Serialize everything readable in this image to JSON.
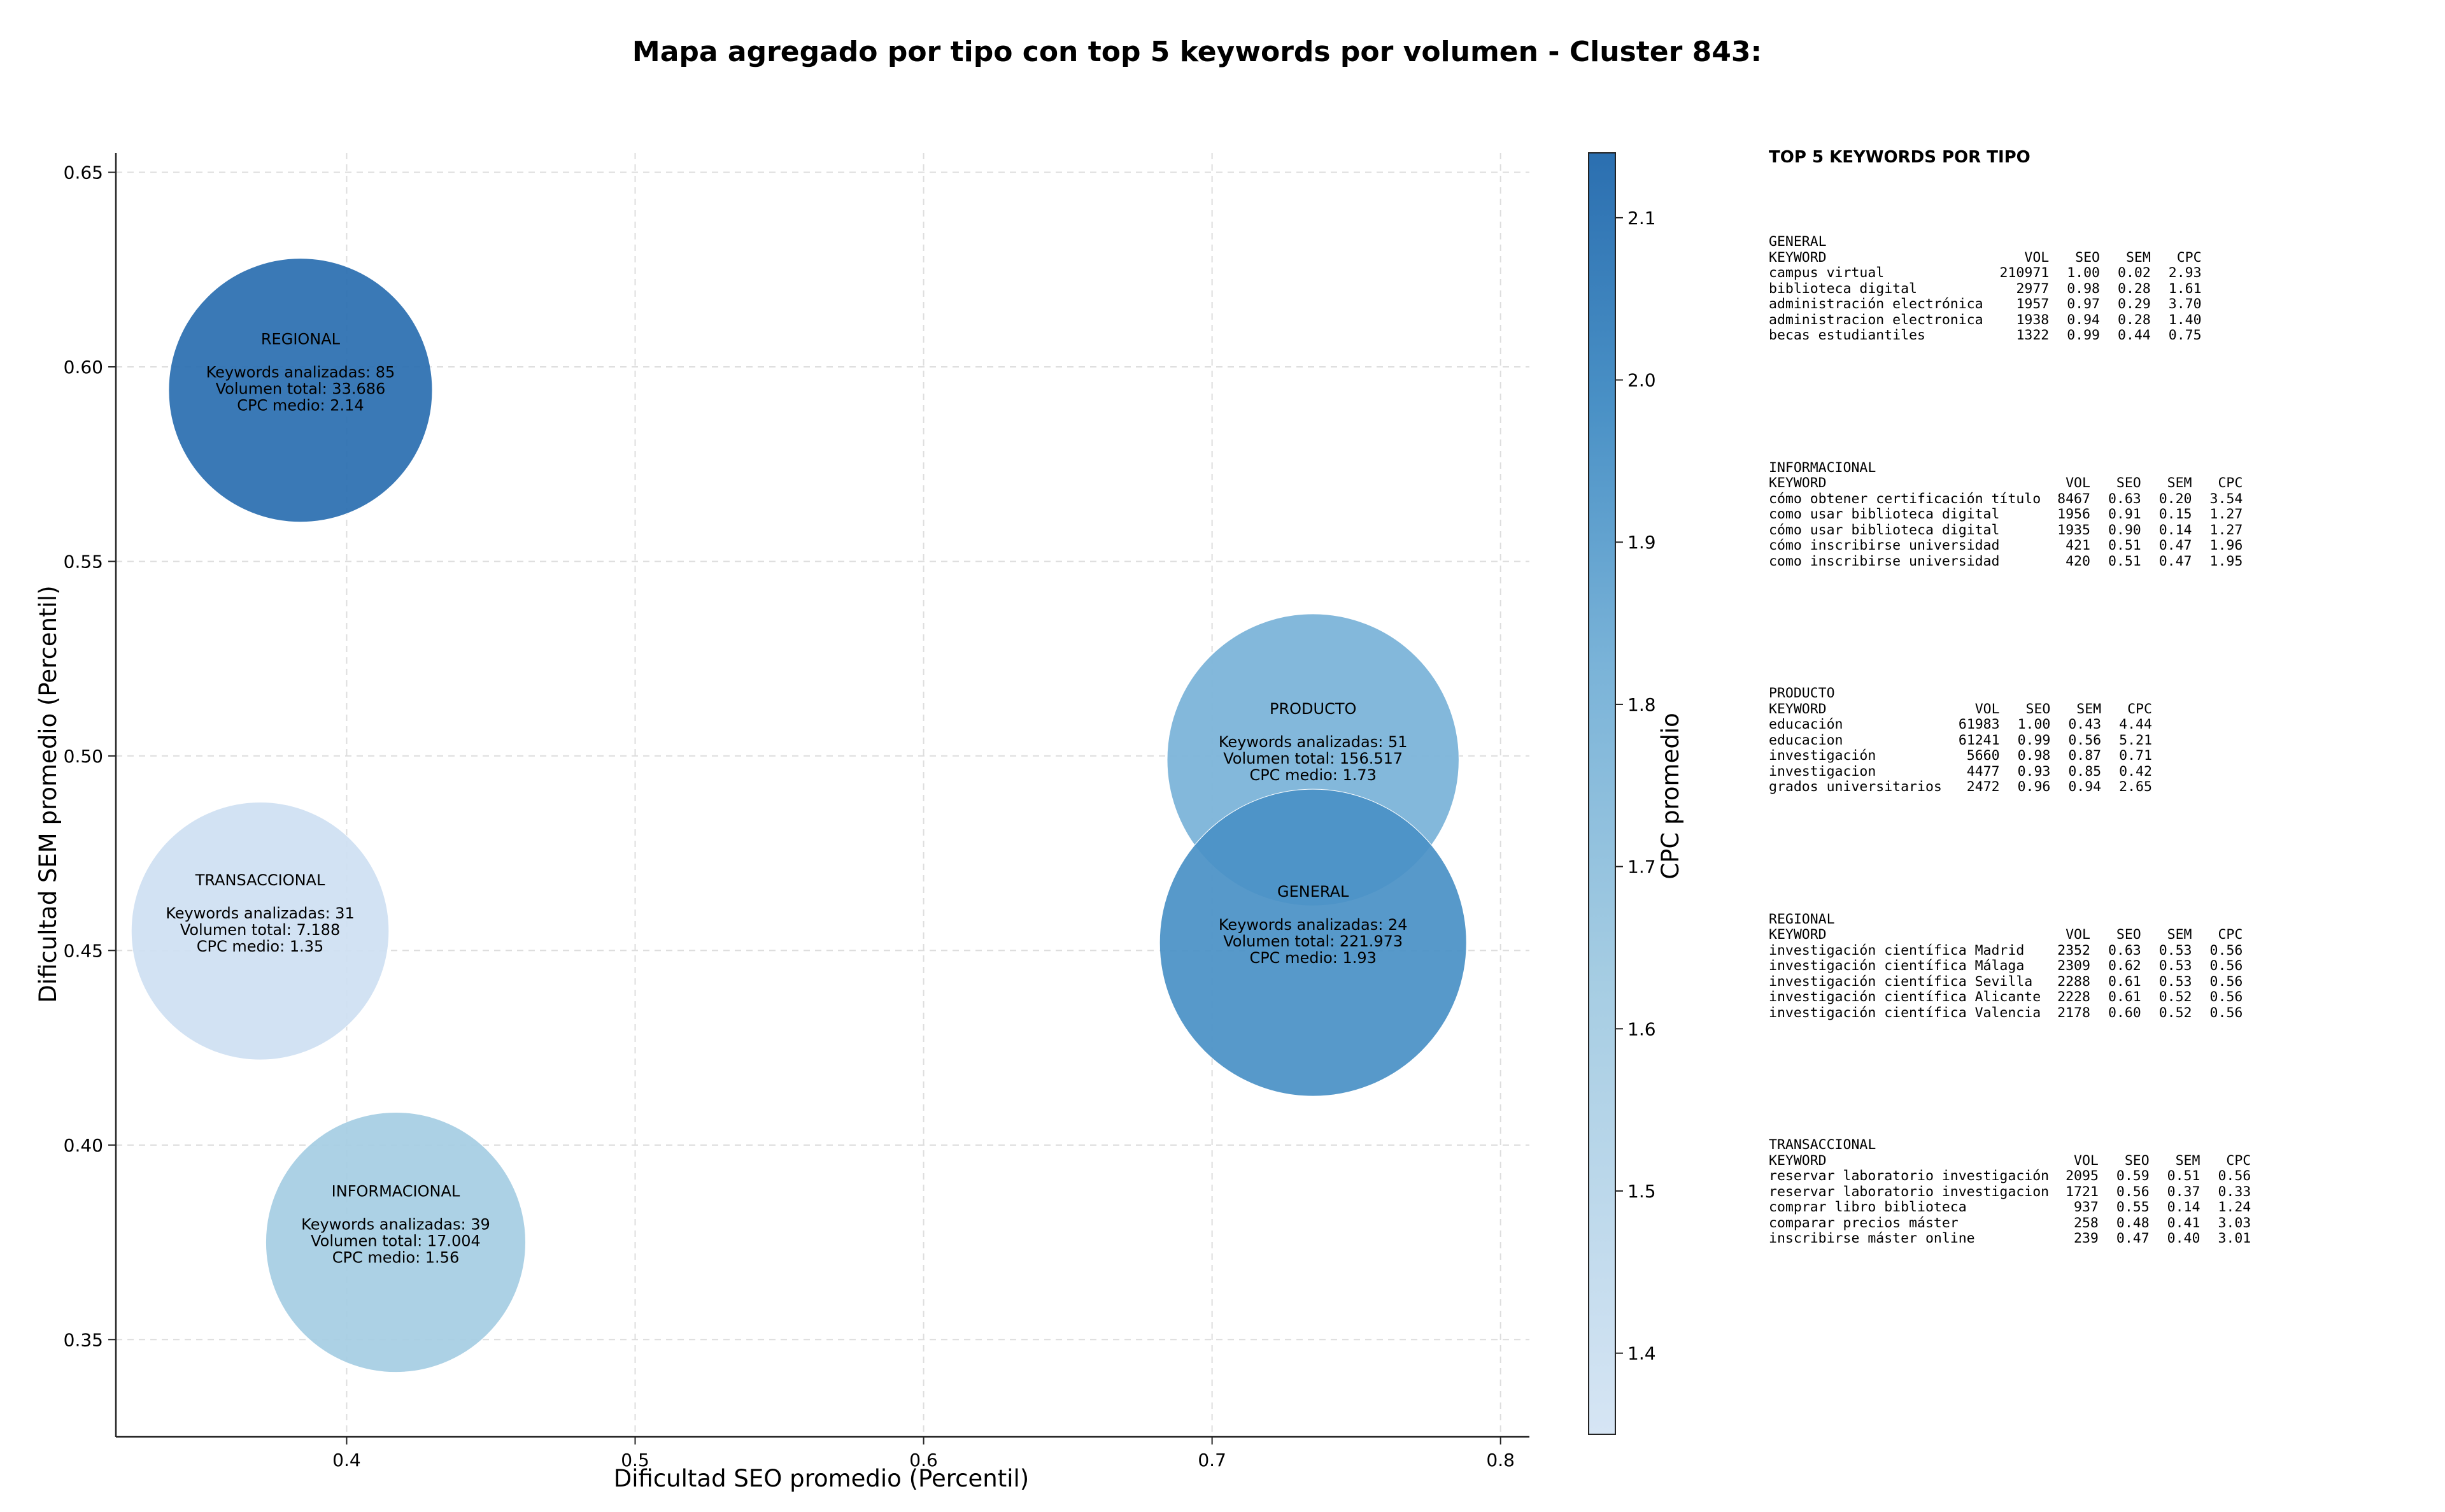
{
  "chart_data": {
    "type": "scatter",
    "title": "Mapa agregado por tipo con top 5 keywords por volumen - Cluster 843:",
    "xlabel": "Dificultad SEO promedio (Percentil)",
    "ylabel": "Dificultad SEM promedio (Percentil)",
    "colorbar_label": "CPC promedio",
    "xlim": [
      0.32,
      0.81
    ],
    "ylim": [
      0.325,
      0.655
    ],
    "x_ticks": [
      "0.4",
      "0.5",
      "0.6",
      "0.7",
      "0.8"
    ],
    "y_ticks": [
      "0.35",
      "0.40",
      "0.45",
      "0.50",
      "0.55",
      "0.60",
      "0.65"
    ],
    "colorbar_range": [
      1.35,
      2.14
    ],
    "colorbar_ticks": [
      "1.4",
      "1.5",
      "1.6",
      "1.7",
      "1.8",
      "1.9",
      "2.0",
      "2.1"
    ],
    "grid": true,
    "bubble_size_encodes": "Volumen total",
    "bubble_color_encodes": "CPC medio",
    "points": [
      {
        "label": "REGIONAL",
        "x": 0.384,
        "y": 0.594,
        "keywords_line": "Keywords analizadas: 85",
        "volume_line": "Volumen total: 33.686",
        "cpc_line": "CPC medio: 2.14",
        "cpc": 2.14,
        "color": "#2b6fb0"
      },
      {
        "label": "TRANSACCIONAL",
        "x": 0.37,
        "y": 0.455,
        "keywords_line": "Keywords analizadas: 31",
        "volume_line": "Volumen total: 7.188",
        "cpc_line": "CPC medio: 1.35",
        "cpc": 1.35,
        "color": "#cfe0f2"
      },
      {
        "label": "INFORMACIONAL",
        "x": 0.417,
        "y": 0.375,
        "keywords_line": "Keywords analizadas: 39",
        "volume_line": "Volumen total: 17.004",
        "cpc_line": "CPC medio: 1.56",
        "cpc": 1.56,
        "color": "#a6cde3"
      },
      {
        "label": "PRODUCTO",
        "x": 0.735,
        "y": 0.499,
        "keywords_line": "Keywords analizadas: 51",
        "volume_line": "Volumen total: 156.517",
        "cpc_line": "CPC medio: 1.73",
        "cpc": 1.73,
        "color": "#7ab3d8"
      },
      {
        "label": "GENERAL",
        "x": 0.735,
        "y": 0.452,
        "keywords_line": "Keywords analizadas: 24",
        "volume_line": "Volumen total: 221.973",
        "cpc_line": "CPC medio: 1.93",
        "cpc": 1.93,
        "color": "#4a91c6"
      }
    ],
    "colors": {
      "colormap_low": "#d6e5f4",
      "colormap_high": "#2b6fb0",
      "grid": "#d9d9d9"
    }
  },
  "panel": {
    "heading": "TOP 5 KEYWORDS POR TIPO",
    "groups": [
      {
        "name": "GENERAL",
        "columns": [
          "KEYWORD",
          "VOL",
          "SEO",
          "SEM",
          "CPC"
        ],
        "rows": [
          [
            "campus virtual",
            "210971",
            "1.00",
            "0.02",
            "2.93"
          ],
          [
            "biblioteca digital",
            "2977",
            "0.98",
            "0.28",
            "1.61"
          ],
          [
            "administración electrónica",
            "1957",
            "0.97",
            "0.29",
            "3.70"
          ],
          [
            "administracion electronica",
            "1938",
            "0.94",
            "0.28",
            "1.40"
          ],
          [
            "becas estudiantiles",
            "1322",
            "0.99",
            "0.44",
            "0.75"
          ]
        ]
      },
      {
        "name": "INFORMACIONAL",
        "columns": [
          "KEYWORD",
          "VOL",
          "SEO",
          "SEM",
          "CPC"
        ],
        "rows": [
          [
            "cómo obtener certificación título",
            "8467",
            "0.63",
            "0.20",
            "3.54"
          ],
          [
            "como usar biblioteca digital",
            "1956",
            "0.91",
            "0.15",
            "1.27"
          ],
          [
            "cómo usar biblioteca digital",
            "1935",
            "0.90",
            "0.14",
            "1.27"
          ],
          [
            "cómo inscribirse universidad",
            "421",
            "0.51",
            "0.47",
            "1.96"
          ],
          [
            "como inscribirse universidad",
            "420",
            "0.51",
            "0.47",
            "1.95"
          ]
        ]
      },
      {
        "name": "PRODUCTO",
        "columns": [
          "KEYWORD",
          "VOL",
          "SEO",
          "SEM",
          "CPC"
        ],
        "rows": [
          [
            "educación",
            "61983",
            "1.00",
            "0.43",
            "4.44"
          ],
          [
            "educacion",
            "61241",
            "0.99",
            "0.56",
            "5.21"
          ],
          [
            "investigación",
            "5660",
            "0.98",
            "0.87",
            "0.71"
          ],
          [
            "investigacion",
            "4477",
            "0.93",
            "0.85",
            "0.42"
          ],
          [
            "grados universitarios",
            "2472",
            "0.96",
            "0.94",
            "2.65"
          ]
        ]
      },
      {
        "name": "REGIONAL",
        "columns": [
          "KEYWORD",
          "VOL",
          "SEO",
          "SEM",
          "CPC"
        ],
        "rows": [
          [
            "investigación científica Madrid",
            "2352",
            "0.63",
            "0.53",
            "0.56"
          ],
          [
            "investigación científica Málaga",
            "2309",
            "0.62",
            "0.53",
            "0.56"
          ],
          [
            "investigación científica Sevilla",
            "2288",
            "0.61",
            "0.53",
            "0.56"
          ],
          [
            "investigación científica Alicante",
            "2228",
            "0.61",
            "0.52",
            "0.56"
          ],
          [
            "investigación científica Valencia",
            "2178",
            "0.60",
            "0.52",
            "0.56"
          ]
        ]
      },
      {
        "name": "TRANSACCIONAL",
        "columns": [
          "KEYWORD",
          "VOL",
          "SEO",
          "SEM",
          "CPC"
        ],
        "rows": [
          [
            "reservar laboratorio investigación",
            "2095",
            "0.59",
            "0.51",
            "0.56"
          ],
          [
            "reservar laboratorio investigacion",
            "1721",
            "0.56",
            "0.37",
            "0.33"
          ],
          [
            "comprar libro biblioteca",
            "937",
            "0.55",
            "0.14",
            "1.24"
          ],
          [
            "comparar precios máster",
            "258",
            "0.48",
            "0.41",
            "3.03"
          ],
          [
            "inscribirse máster online",
            "239",
            "0.47",
            "0.40",
            "3.01"
          ]
        ]
      }
    ]
  }
}
